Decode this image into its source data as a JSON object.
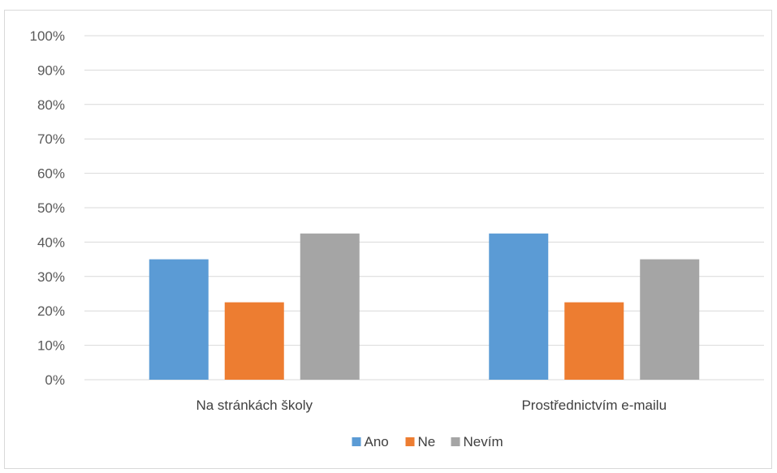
{
  "chart_data": {
    "type": "bar",
    "title": "",
    "xlabel": "",
    "ylabel": "",
    "categories": [
      "Na stránkách školy",
      "Prostřednictvím e-mailu"
    ],
    "series": [
      {
        "name": "Ano",
        "values": [
          35,
          42.5
        ],
        "color": "#5b9bd5"
      },
      {
        "name": "Ne",
        "values": [
          22.5,
          22.5
        ],
        "color": "#ed7d31"
      },
      {
        "name": "Nevím",
        "values": [
          42.5,
          35
        ],
        "color": "#a5a5a5"
      }
    ],
    "ylim": [
      0,
      100
    ],
    "yticks": [
      "0%",
      "10%",
      "20%",
      "30%",
      "40%",
      "50%",
      "60%",
      "70%",
      "80%",
      "90%",
      "100%"
    ],
    "grid": true,
    "gridColor": "#d9d9d9",
    "legend_position": "bottom"
  }
}
